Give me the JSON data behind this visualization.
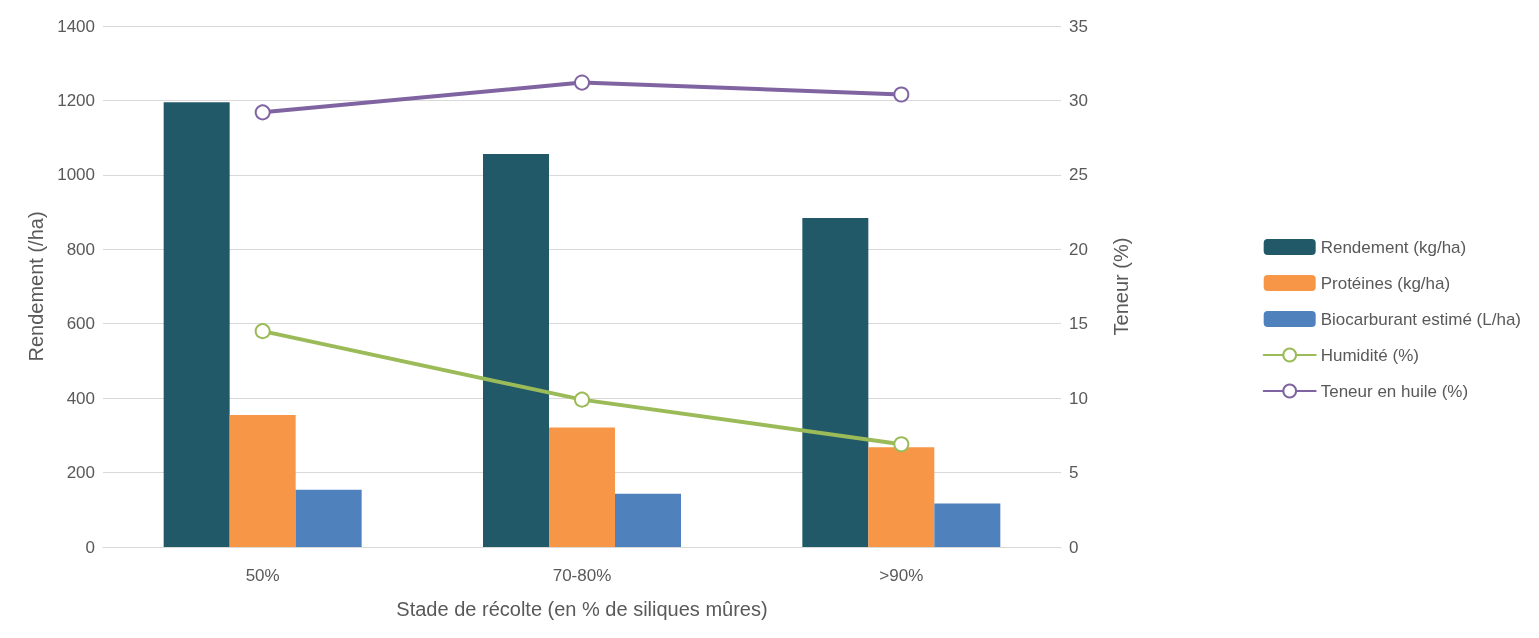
{
  "chart_data": {
    "type": "bar",
    "xlabel": "Stade de récolte (en % de siliques mûres)",
    "ylabel": "Rendement (/ha)",
    "y2label": "Teneur (%)",
    "categories": [
      "50%",
      "70-80%",
      ">90%"
    ],
    "series": [
      {
        "name": "Rendement (kg/ha)",
        "color": "#215968",
        "values": [
          1195,
          1056,
          884
        ]
      },
      {
        "name": "Protéines (kg/ha)",
        "color": "#f79646",
        "values": [
          355,
          321,
          268
        ]
      },
      {
        "name": "Biocarburant estimé (L/ha)",
        "color": "#4f81bd",
        "values": [
          154,
          143,
          117
        ]
      },
      {
        "name": "Humidité (%)",
        "type": "line",
        "axis": "y2",
        "color": "#9bbb59",
        "values": [
          14.5,
          9.9,
          6.9
        ]
      },
      {
        "name": "Teneur en huile (%)",
        "type": "line",
        "axis": "y2",
        "color": "#8064a2",
        "values": [
          29.2,
          31.2,
          30.4
        ]
      }
    ],
    "ylim": [
      0,
      1400
    ],
    "yticks": [
      0,
      200,
      400,
      600,
      800,
      1000,
      1200,
      1400
    ],
    "y2lim": [
      0,
      35
    ],
    "y2ticks": [
      0,
      5,
      10,
      15,
      20,
      25,
      30,
      35
    ],
    "grid": "y",
    "legend": "right",
    "marker": "circle"
  }
}
